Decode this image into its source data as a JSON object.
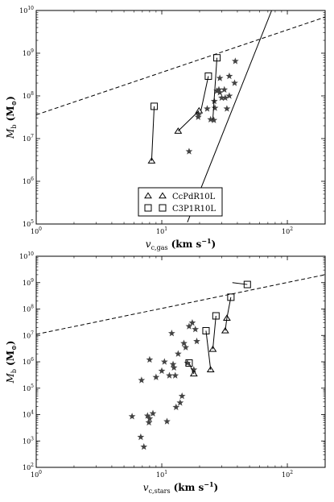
{
  "chart_data": [
    {
      "type": "scatter",
      "xlabel": "v_{c,gas} (km s^{-1})",
      "xlabel_main": "v",
      "xlabel_sub": "c,gas",
      "xlabel_unit": "(km s",
      "xlabel_unit_exp": "−1",
      "xlabel_unit_close": ")",
      "ylabel_main": "M",
      "ylabel_sub": "b",
      "ylabel_unit": "(M",
      "ylabel_unit_sym": "⊙",
      "ylabel_unit_close": ")",
      "xscale": "log",
      "yscale": "log",
      "xlim": [
        1,
        200
      ],
      "ylim": [
        100000,
        10000000000
      ],
      "xticks": [
        {
          "v": 1,
          "label": "10",
          "exp": "0"
        },
        {
          "v": 10,
          "label": "10",
          "exp": "1"
        },
        {
          "v": 100,
          "label": "10",
          "exp": "2"
        }
      ],
      "yticks": [
        {
          "v": 100000,
          "label": "10",
          "exp": "5"
        },
        {
          "v": 1000000,
          "label": "10",
          "exp": "6"
        },
        {
          "v": 10000000,
          "label": "10",
          "exp": "7"
        },
        {
          "v": 100000000,
          "label": "10",
          "exp": "8"
        },
        {
          "v": 1000000000,
          "label": "10",
          "exp": "9"
        },
        {
          "v": 10000000000,
          "label": "10",
          "exp": "10"
        }
      ],
      "legend": {
        "placement": "lower-center",
        "entries": [
          {
            "label": "CcPdR10L",
            "marker": "triangle"
          },
          {
            "label": "C3P1R10L",
            "marker": "square"
          }
        ]
      },
      "dashed_line": [
        [
          1,
          36000000
        ],
        [
          200,
          7000000000
        ]
      ],
      "fit_line": [
        [
          16,
          110000
        ],
        [
          75,
          10000000000
        ]
      ],
      "stars": [
        [
          16.5,
          5000000
        ],
        [
          19.5,
          32000000
        ],
        [
          19.6,
          36000000
        ],
        [
          23,
          50000000
        ],
        [
          24.5,
          28000000
        ],
        [
          26,
          27000000
        ],
        [
          26.5,
          52000000
        ],
        [
          26.2,
          75000000
        ],
        [
          27.5,
          130000000
        ],
        [
          28.5,
          140000000
        ],
        [
          29,
          120000000
        ],
        [
          29,
          260000000
        ],
        [
          30,
          90000000
        ],
        [
          31.5,
          140000000
        ],
        [
          32,
          90000000
        ],
        [
          33,
          50000000
        ],
        [
          34.5,
          100000000
        ],
        [
          34.5,
          290000000
        ],
        [
          38,
          200000000
        ],
        [
          38.5,
          650000000
        ]
      ],
      "tracks": [
        {
          "marker": "triangle",
          "points": [
            [
              8.3,
              3000000
            ],
            [
              8.7,
              57000000
            ]
          ],
          "end_marker": "square"
        },
        {
          "marker": "triangle",
          "points": [
            [
              13.5,
              15000000
            ],
            [
              19.8,
              45000000
            ]
          ]
        },
        {
          "marker": "square",
          "points": [
            [
              20.5,
              45000000
            ],
            [
              23.5,
              290000000
            ]
          ]
        },
        {
          "marker": "square",
          "points": [
            [
              25.5,
              28000000
            ],
            [
              27.5,
              780000000
            ]
          ]
        }
      ],
      "markers": [
        {
          "shape": "triangle",
          "x": 8.3,
          "y": 3000000
        },
        {
          "shape": "square",
          "x": 8.7,
          "y": 57000000
        },
        {
          "shape": "triangle",
          "x": 13.5,
          "y": 15000000
        },
        {
          "shape": "triangle",
          "x": 19.8,
          "y": 45000000
        },
        {
          "shape": "square",
          "x": 23.5,
          "y": 290000000
        },
        {
          "shape": "square",
          "x": 27.5,
          "y": 780000000
        }
      ]
    },
    {
      "type": "scatter",
      "xlabel_main": "v",
      "xlabel_sub": "c,stars",
      "xlabel_unit": "(km s",
      "xlabel_unit_exp": "−1",
      "xlabel_unit_close": ")",
      "ylabel_main": "M",
      "ylabel_sub": "b",
      "ylabel_unit": "(M",
      "ylabel_unit_sym": "⊙",
      "ylabel_unit_close": ")",
      "xscale": "log",
      "yscale": "log",
      "xlim": [
        1,
        200
      ],
      "ylim": [
        100,
        10000000000
      ],
      "xticks": [
        {
          "v": 1,
          "label": "10",
          "exp": "0"
        },
        {
          "v": 10,
          "label": "10",
          "exp": "1"
        },
        {
          "v": 100,
          "label": "10",
          "exp": "2"
        }
      ],
      "yticks": [
        {
          "v": 100,
          "label": "10",
          "exp": "2"
        },
        {
          "v": 1000,
          "label": "10",
          "exp": "3"
        },
        {
          "v": 10000,
          "label": "10",
          "exp": "4"
        },
        {
          "v": 100000,
          "label": "10",
          "exp": "5"
        },
        {
          "v": 1000000,
          "label": "10",
          "exp": "6"
        },
        {
          "v": 10000000,
          "label": "10",
          "exp": "7"
        },
        {
          "v": 100000000,
          "label": "10",
          "exp": "8"
        },
        {
          "v": 1000000000,
          "label": "10",
          "exp": "9"
        },
        {
          "v": 10000000000,
          "label": "10",
          "exp": "10"
        }
      ],
      "dashed_line": [
        [
          1,
          11000000
        ],
        [
          200,
          2000000000
        ]
      ],
      "stars": [
        [
          5.8,
          8500
        ],
        [
          6.8,
          1400
        ],
        [
          6.9,
          200000
        ],
        [
          7.2,
          600
        ],
        [
          7.7,
          9000
        ],
        [
          7.9,
          5000
        ],
        [
          8.0,
          1200000
        ],
        [
          8.0,
          7000
        ],
        [
          8.5,
          11000
        ],
        [
          9.0,
          260000
        ],
        [
          10.0,
          450000
        ],
        [
          10.5,
          1000000
        ],
        [
          11.0,
          5500
        ],
        [
          11.5,
          300000
        ],
        [
          12.0,
          12000000
        ],
        [
          12.3,
          800000
        ],
        [
          12.5,
          600000
        ],
        [
          13.0,
          19000
        ],
        [
          13.5,
          2000000
        ],
        [
          14.5,
          50000
        ],
        [
          15.0,
          5000000
        ],
        [
          15.5,
          3500000
        ],
        [
          16.0,
          900000
        ],
        [
          16.5,
          22000000
        ],
        [
          17.5,
          30000000
        ],
        [
          18.0,
          500000
        ],
        [
          18.5,
          17000000
        ],
        [
          19.0,
          6000000
        ],
        [
          14.0,
          28000
        ],
        [
          12.8,
          300000
        ]
      ],
      "tracks": [
        {
          "points": [
            [
              16.5,
              900000
            ],
            [
              18.0,
              350000
            ]
          ]
        },
        {
          "points": [
            [
              22.5,
              15000000
            ],
            [
              24.5,
              500000
            ]
          ]
        },
        {
          "points": [
            [
              25.5,
              3000000
            ],
            [
              27.0,
              55000000
            ]
          ]
        },
        {
          "points": [
            [
              32.0,
              15000000
            ],
            [
              33.0,
              45000000
            ],
            [
              35.5,
              280000000
            ]
          ]
        },
        {
          "points": [
            [
              36.5,
              1000000000
            ],
            [
              48.0,
              850000000
            ]
          ]
        }
      ],
      "markers": [
        {
          "shape": "square",
          "x": 16.5,
          "y": 900000
        },
        {
          "shape": "triangle",
          "x": 18.0,
          "y": 350000
        },
        {
          "shape": "square",
          "x": 22.5,
          "y": 15000000
        },
        {
          "shape": "triangle",
          "x": 24.5,
          "y": 500000
        },
        {
          "shape": "triangle",
          "x": 25.5,
          "y": 3000000
        },
        {
          "shape": "square",
          "x": 27.0,
          "y": 55000000
        },
        {
          "shape": "triangle",
          "x": 32.0,
          "y": 15000000
        },
        {
          "shape": "triangle",
          "x": 33.0,
          "y": 45000000
        },
        {
          "shape": "square",
          "x": 35.5,
          "y": 280000000
        },
        {
          "shape": "square",
          "x": 48.0,
          "y": 850000000
        }
      ]
    }
  ]
}
